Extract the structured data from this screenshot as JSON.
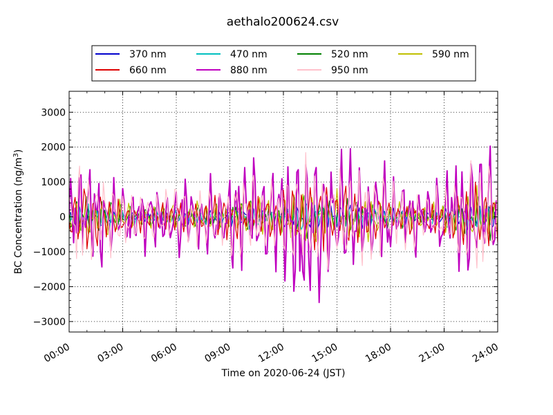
{
  "chart_data": {
    "type": "line",
    "title": "aethalo200624.csv",
    "xlabel": "Time on 2020-06-24 (JST)",
    "ylabel_main": "BC Concentration (ng/m",
    "ylabel_sup": "3",
    "ylabel_close": ")",
    "xlim_hours": [
      0,
      24
    ],
    "ylim": [
      -3300,
      3600
    ],
    "xticks": [
      {
        "value": 0,
        "label": "00:00"
      },
      {
        "value": 3,
        "label": "03:00"
      },
      {
        "value": 6,
        "label": "06:00"
      },
      {
        "value": 9,
        "label": "09:00"
      },
      {
        "value": 12,
        "label": "12:00"
      },
      {
        "value": 15,
        "label": "15:00"
      },
      {
        "value": 18,
        "label": "18:00"
      },
      {
        "value": 21,
        "label": "21:00"
      },
      {
        "value": 24,
        "label": "24:00"
      }
    ],
    "yticks": [
      {
        "value": 3000,
        "label": "3000"
      },
      {
        "value": 2000,
        "label": "2000"
      },
      {
        "value": 1000,
        "label": "1000"
      },
      {
        "value": 0,
        "label": "0"
      },
      {
        "value": -1000,
        "label": "−1000"
      },
      {
        "value": -2000,
        "label": "−2000"
      },
      {
        "value": -3000,
        "label": "−3000"
      }
    ],
    "grid": true,
    "legend_position": "top",
    "legend_columns": 4,
    "sample_interval_minutes": 5,
    "envelope_hours": [
      0,
      1,
      2,
      3,
      4,
      5,
      6,
      7,
      8,
      9,
      10,
      11,
      12,
      13,
      14,
      15,
      16,
      17,
      18,
      19,
      20,
      21,
      22,
      23,
      24
    ],
    "envelope_ng_m3": [
      1800,
      1900,
      1600,
      1100,
      900,
      1000,
      1100,
      1200,
      1100,
      1400,
      1500,
      1300,
      1600,
      2600,
      2100,
      1900,
      1800,
      1600,
      1300,
      1100,
      900,
      1200,
      1800,
      2100,
      1900
    ],
    "series": [
      {
        "name": "370 nm",
        "color": "#0000cc",
        "amplitude_ratio": 0.18,
        "phase": 0.4
      },
      {
        "name": "470 nm",
        "color": "#00bfbf",
        "amplitude_ratio": 0.24,
        "phase": 1.3
      },
      {
        "name": "520 nm",
        "color": "#008000",
        "amplitude_ratio": 0.3,
        "phase": 2.1
      },
      {
        "name": "590 nm",
        "color": "#bfbf00",
        "amplitude_ratio": 0.36,
        "phase": 2.9
      },
      {
        "name": "660 nm",
        "color": "#dd0000",
        "amplitude_ratio": 0.46,
        "phase": 3.7
      },
      {
        "name": "880 nm",
        "color": "#bf00bf",
        "amplitude_ratio": 1.0,
        "phase": 0.0
      },
      {
        "name": "950 nm",
        "color": "#ffc0cb",
        "amplitude_ratio": 0.8,
        "phase": 0.6
      }
    ]
  }
}
